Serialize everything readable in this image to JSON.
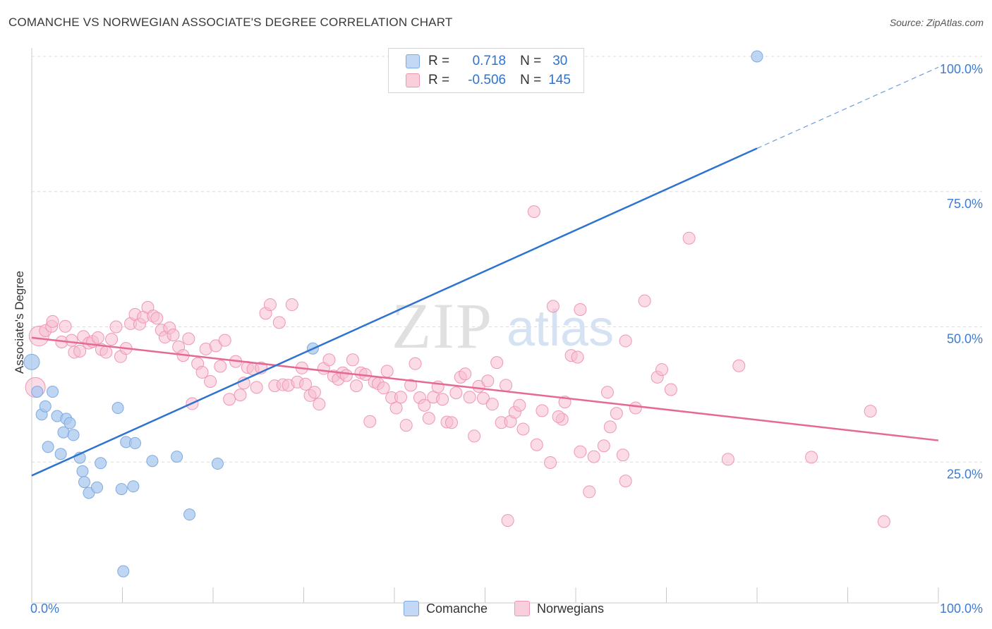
{
  "title": "COMANCHE VS NORWEGIAN ASSOCIATE'S DEGREE CORRELATION CHART",
  "source": "Source: ZipAtlas.com",
  "watermark": {
    "zip": "ZIP",
    "atlas": "atlas"
  },
  "legend": {
    "r_label": "R =",
    "n_label": "N =",
    "comanche": {
      "r": "0.718",
      "n": "30"
    },
    "norwegians": {
      "r": "-0.506",
      "n": "145"
    }
  },
  "bottom_legend": {
    "comanche": "Comanche",
    "norwegians": "Norwegians"
  },
  "colors": {
    "comanche_fill": "#a9c8ef",
    "comanche_stroke": "#7eaae3",
    "comanche_line": "#2f73d0",
    "norwegian_fill": "#f7bdd0",
    "norwegian_stroke": "#ee97b4",
    "norwegian_line": "#e66896",
    "tick_label": "#3d7bd4",
    "grid": "#dcdcdc"
  },
  "chart_data": {
    "type": "scatter",
    "title": "COMANCHE VS NORWEGIAN ASSOCIATE'S DEGREE CORRELATION CHART",
    "xlabel": "",
    "ylabel": "Associate's Degree",
    "xlim": [
      0,
      100
    ],
    "ylim": [
      0,
      100
    ],
    "x_tick_labels": [
      "0.0%",
      "100.0%"
    ],
    "y_ticks": [
      25,
      50,
      75,
      100
    ],
    "y_tick_labels": [
      "25.0%",
      "50.0%",
      "75.0%",
      "100.0%"
    ],
    "series": [
      {
        "name": "Comanche",
        "r": 0.718,
        "n": 30,
        "trend": {
          "x0": 0,
          "y0": 22.5,
          "x1": 80,
          "y1": 83,
          "dashed_to_x": 100,
          "dashed_to_y": 98
        },
        "points": [
          {
            "x": 0,
            "y": 43.5,
            "big": true
          },
          {
            "x": 0.6,
            "y": 38
          },
          {
            "x": 1.1,
            "y": 33.8
          },
          {
            "x": 1.5,
            "y": 35.3
          },
          {
            "x": 1.8,
            "y": 27.8
          },
          {
            "x": 2.3,
            "y": 38
          },
          {
            "x": 2.8,
            "y": 33.5
          },
          {
            "x": 3.2,
            "y": 26.5
          },
          {
            "x": 3.5,
            "y": 30.5
          },
          {
            "x": 3.8,
            "y": 33
          },
          {
            "x": 4.2,
            "y": 32.2
          },
          {
            "x": 4.6,
            "y": 30
          },
          {
            "x": 5.3,
            "y": 25.8
          },
          {
            "x": 5.6,
            "y": 23.3
          },
          {
            "x": 5.8,
            "y": 21.3
          },
          {
            "x": 6.3,
            "y": 19.3
          },
          {
            "x": 7.2,
            "y": 20.3
          },
          {
            "x": 7.6,
            "y": 24.8
          },
          {
            "x": 9.5,
            "y": 35
          },
          {
            "x": 9.9,
            "y": 20
          },
          {
            "x": 10.4,
            "y": 28.7
          },
          {
            "x": 11.2,
            "y": 20.5
          },
          {
            "x": 11.4,
            "y": 28.5
          },
          {
            "x": 13.3,
            "y": 25.2
          },
          {
            "x": 16,
            "y": 26
          },
          {
            "x": 17.4,
            "y": 15.3
          },
          {
            "x": 20.5,
            "y": 24.7
          },
          {
            "x": 31,
            "y": 46
          },
          {
            "x": 10.1,
            "y": 4.8
          },
          {
            "x": 80,
            "y": 100
          }
        ]
      },
      {
        "name": "Norwegians",
        "r": -0.506,
        "n": 145,
        "trend": {
          "x0": 0,
          "y0": 48,
          "x1": 100,
          "y1": 29
        },
        "points": [
          {
            "x": 0.4,
            "y": 38.8,
            "big": true
          },
          {
            "x": 0.8,
            "y": 48.3,
            "big": true
          },
          {
            "x": 1.5,
            "y": 49.3
          },
          {
            "x": 2.2,
            "y": 50.1
          },
          {
            "x": 2.3,
            "y": 51
          },
          {
            "x": 3.3,
            "y": 47.2
          },
          {
            "x": 3.7,
            "y": 50.1
          },
          {
            "x": 4.4,
            "y": 47.5
          },
          {
            "x": 4.7,
            "y": 45.3
          },
          {
            "x": 5.3,
            "y": 45.5
          },
          {
            "x": 5.7,
            "y": 48.2
          },
          {
            "x": 6.3,
            "y": 47
          },
          {
            "x": 6.7,
            "y": 47.3
          },
          {
            "x": 7.3,
            "y": 48
          },
          {
            "x": 7.7,
            "y": 45.8
          },
          {
            "x": 8.2,
            "y": 45.3
          },
          {
            "x": 8.8,
            "y": 47.7
          },
          {
            "x": 9.3,
            "y": 50
          },
          {
            "x": 9.8,
            "y": 44.5
          },
          {
            "x": 10.4,
            "y": 46
          },
          {
            "x": 10.9,
            "y": 50.6
          },
          {
            "x": 11.4,
            "y": 52.3
          },
          {
            "x": 11.9,
            "y": 50.5
          },
          {
            "x": 12.3,
            "y": 51.8
          },
          {
            "x": 12.8,
            "y": 53.6
          },
          {
            "x": 13.4,
            "y": 52
          },
          {
            "x": 13.8,
            "y": 51.6
          },
          {
            "x": 14.3,
            "y": 49.4
          },
          {
            "x": 14.7,
            "y": 48.1
          },
          {
            "x": 15.2,
            "y": 49.8
          },
          {
            "x": 15.6,
            "y": 48.5
          },
          {
            "x": 16.2,
            "y": 46.3
          },
          {
            "x": 16.7,
            "y": 44.7
          },
          {
            "x": 17.3,
            "y": 47.8
          },
          {
            "x": 17.7,
            "y": 35.8
          },
          {
            "x": 18.3,
            "y": 43.2
          },
          {
            "x": 18.8,
            "y": 41.6
          },
          {
            "x": 19.2,
            "y": 45.9
          },
          {
            "x": 19.7,
            "y": 39.9
          },
          {
            "x": 20.3,
            "y": 46.5
          },
          {
            "x": 20.8,
            "y": 42.7
          },
          {
            "x": 21.3,
            "y": 47.5
          },
          {
            "x": 21.8,
            "y": 36.6
          },
          {
            "x": 22.5,
            "y": 43.6
          },
          {
            "x": 23,
            "y": 37.4
          },
          {
            "x": 23.4,
            "y": 39.6
          },
          {
            "x": 23.8,
            "y": 42.5
          },
          {
            "x": 24.4,
            "y": 42.2
          },
          {
            "x": 24.8,
            "y": 38.8
          },
          {
            "x": 25.3,
            "y": 42.4
          },
          {
            "x": 25.8,
            "y": 52.5
          },
          {
            "x": 26.3,
            "y": 54.1
          },
          {
            "x": 26.8,
            "y": 39.1
          },
          {
            "x": 27.3,
            "y": 50.8
          },
          {
            "x": 27.7,
            "y": 39.3
          },
          {
            "x": 28.3,
            "y": 39.2
          },
          {
            "x": 28.7,
            "y": 54.1
          },
          {
            "x": 29.3,
            "y": 39.8
          },
          {
            "x": 29.8,
            "y": 42.4
          },
          {
            "x": 30.2,
            "y": 39.4
          },
          {
            "x": 30.7,
            "y": 37.3
          },
          {
            "x": 31.2,
            "y": 37.9
          },
          {
            "x": 31.7,
            "y": 35.7
          },
          {
            "x": 32.2,
            "y": 42.3
          },
          {
            "x": 32.8,
            "y": 43.9
          },
          {
            "x": 33.3,
            "y": 40.9
          },
          {
            "x": 33.8,
            "y": 40.3
          },
          {
            "x": 34.3,
            "y": 41.5
          },
          {
            "x": 34.7,
            "y": 41
          },
          {
            "x": 35.4,
            "y": 43.9
          },
          {
            "x": 35.8,
            "y": 39.1
          },
          {
            "x": 36.3,
            "y": 41.5
          },
          {
            "x": 36.8,
            "y": 41.2
          },
          {
            "x": 37.3,
            "y": 32.5
          },
          {
            "x": 37.8,
            "y": 39.8
          },
          {
            "x": 38.2,
            "y": 39.5
          },
          {
            "x": 38.8,
            "y": 38.7
          },
          {
            "x": 39.2,
            "y": 41.8
          },
          {
            "x": 39.7,
            "y": 36.9
          },
          {
            "x": 40.2,
            "y": 35
          },
          {
            "x": 40.7,
            "y": 37
          },
          {
            "x": 41.3,
            "y": 31.8
          },
          {
            "x": 41.8,
            "y": 39.2
          },
          {
            "x": 42.3,
            "y": 43.2
          },
          {
            "x": 42.8,
            "y": 36.9
          },
          {
            "x": 43.3,
            "y": 35.5
          },
          {
            "x": 43.8,
            "y": 33.1
          },
          {
            "x": 44.3,
            "y": 37
          },
          {
            "x": 44.8,
            "y": 38.9
          },
          {
            "x": 45.3,
            "y": 36.6
          },
          {
            "x": 45.8,
            "y": 32.4
          },
          {
            "x": 46.3,
            "y": 32.3
          },
          {
            "x": 46.8,
            "y": 37.8
          },
          {
            "x": 47.3,
            "y": 40.7
          },
          {
            "x": 47.8,
            "y": 41.3
          },
          {
            "x": 48.3,
            "y": 37
          },
          {
            "x": 48.8,
            "y": 29.8
          },
          {
            "x": 49.3,
            "y": 39
          },
          {
            "x": 49.8,
            "y": 36.8
          },
          {
            "x": 50.3,
            "y": 40
          },
          {
            "x": 50.8,
            "y": 35.7
          },
          {
            "x": 51.3,
            "y": 43.4
          },
          {
            "x": 51.8,
            "y": 32.3
          },
          {
            "x": 52.3,
            "y": 39.2
          },
          {
            "x": 52.8,
            "y": 32.5
          },
          {
            "x": 53.3,
            "y": 34.2
          },
          {
            "x": 53.8,
            "y": 35.5
          },
          {
            "x": 55.4,
            "y": 71.3
          },
          {
            "x": 56.3,
            "y": 34.5
          },
          {
            "x": 57.2,
            "y": 24.9
          },
          {
            "x": 58.8,
            "y": 36.1
          },
          {
            "x": 59.5,
            "y": 44.7
          },
          {
            "x": 60.5,
            "y": 26.9
          },
          {
            "x": 62,
            "y": 26
          },
          {
            "x": 63.1,
            "y": 28
          },
          {
            "x": 63.8,
            "y": 31.5
          },
          {
            "x": 65.2,
            "y": 26.3
          },
          {
            "x": 67.6,
            "y": 54.8
          },
          {
            "x": 70.5,
            "y": 38.4
          },
          {
            "x": 72.5,
            "y": 66.4
          },
          {
            "x": 76.8,
            "y": 25.5
          },
          {
            "x": 78,
            "y": 42.8
          },
          {
            "x": 86,
            "y": 25.9
          },
          {
            "x": 92.5,
            "y": 34.4
          },
          {
            "x": 94,
            "y": 14
          },
          {
            "x": 52.5,
            "y": 14.2
          },
          {
            "x": 57.5,
            "y": 53.8
          },
          {
            "x": 60.5,
            "y": 53.2
          },
          {
            "x": 63.5,
            "y": 37.9
          },
          {
            "x": 65.5,
            "y": 21.5
          },
          {
            "x": 65.5,
            "y": 47.4
          },
          {
            "x": 69,
            "y": 40.7
          },
          {
            "x": 69.5,
            "y": 42.1
          },
          {
            "x": 58.5,
            "y": 32.9
          },
          {
            "x": 60.2,
            "y": 44.4
          },
          {
            "x": 54.2,
            "y": 31.1
          },
          {
            "x": 58.1,
            "y": 33.4
          },
          {
            "x": 61.5,
            "y": 19.5
          },
          {
            "x": 66.6,
            "y": 35
          },
          {
            "x": 55.7,
            "y": 28.2
          },
          {
            "x": 64.5,
            "y": 34
          }
        ]
      }
    ]
  }
}
